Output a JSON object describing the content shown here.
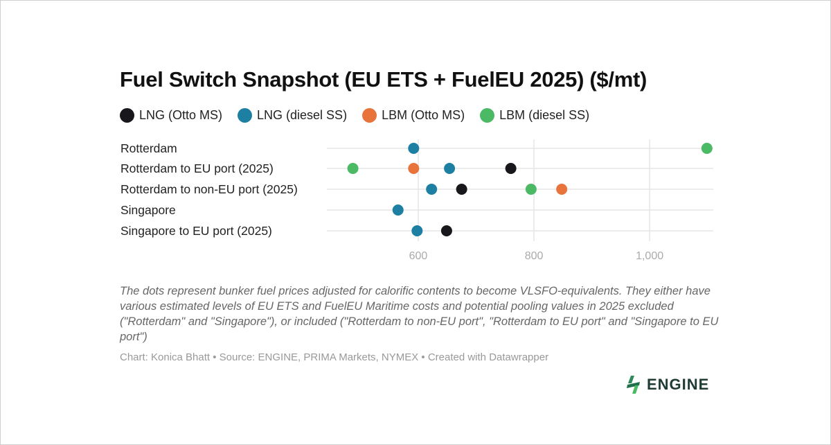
{
  "chart_data": {
    "type": "scatter",
    "title": "Fuel Switch Snapshot (EU ETS + FuelEU 2025) ($/mt)",
    "categories": [
      "Rotterdam",
      "Rotterdam to EU port (2025)",
      "Rotterdam to non-EU port (2025)",
      "Singapore",
      "Singapore to EU port (2025)"
    ],
    "series": [
      {
        "name": "LNG (Otto MS)",
        "color": "#17171c",
        "values": [
          null,
          760,
          675,
          null,
          649
        ]
      },
      {
        "name": "LNG (diesel SS)",
        "color": "#1d7fa1",
        "values": [
          592,
          654,
          623,
          565,
          598
        ]
      },
      {
        "name": "LBM (Otto MS)",
        "color": "#e8743b",
        "values": [
          null,
          592,
          848,
          null,
          null
        ]
      },
      {
        "name": "LBM (diesel SS)",
        "color": "#4cb965",
        "values": [
          1099,
          487,
          795,
          null,
          null
        ]
      }
    ],
    "xlim": [
      442,
      1110
    ],
    "xticks": [
      600,
      800,
      1000
    ],
    "xtick_labels": [
      "600",
      "800",
      "1,000"
    ],
    "grid": true,
    "legend_placement": "top-left"
  },
  "notes": "The dots represent bunker fuel prices adjusted for calorific contents to become VLSFO-equivalents. They either have various estimated levels of EU ETS and FuelEU Maritime costs and potential pooling values in 2025 excluded (\"Rotterdam\" and \"Singapore\"), or included (\"Rotterdam to non-EU port\", \"Rotterdam to EU port\" and \"Singapore to EU port\")",
  "credit": "Chart: Konica Bhatt • Source: ENGINE, PRIMA Markets, NYMEX • Created with Datawrapper",
  "logo": "ENGINE"
}
